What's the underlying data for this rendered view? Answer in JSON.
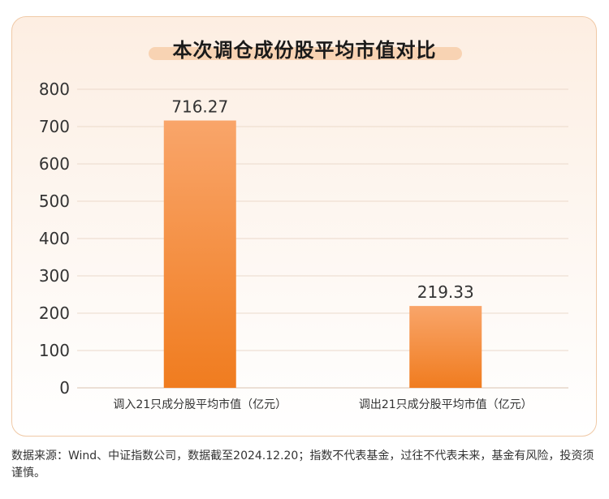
{
  "chart_data": {
    "type": "bar",
    "title": "本次调仓成份股平均市值对比",
    "categories": [
      "调入21只成分股平均市值（亿元）",
      "调出21只成分股平均市值（亿元）"
    ],
    "values": [
      716.27,
      219.33
    ],
    "value_labels": [
      "716.27",
      "219.33"
    ],
    "ylim": [
      0,
      800
    ],
    "yticks": [
      0,
      100,
      200,
      300,
      400,
      500,
      600,
      700,
      800
    ],
    "grid": true,
    "xlabel": "",
    "ylabel": ""
  },
  "colors": {
    "bar_top": "#f9a56a",
    "bar_bottom": "#f07c1f",
    "grid": "#ead9cb",
    "title_highlight": "#f8d3b3"
  },
  "footer": {
    "source": "数据来源：Wind、中证指数公司，数据截至2024.12.20；指数不代表基金，过往不代表未来，基金有风险，投资须谨慎。"
  }
}
